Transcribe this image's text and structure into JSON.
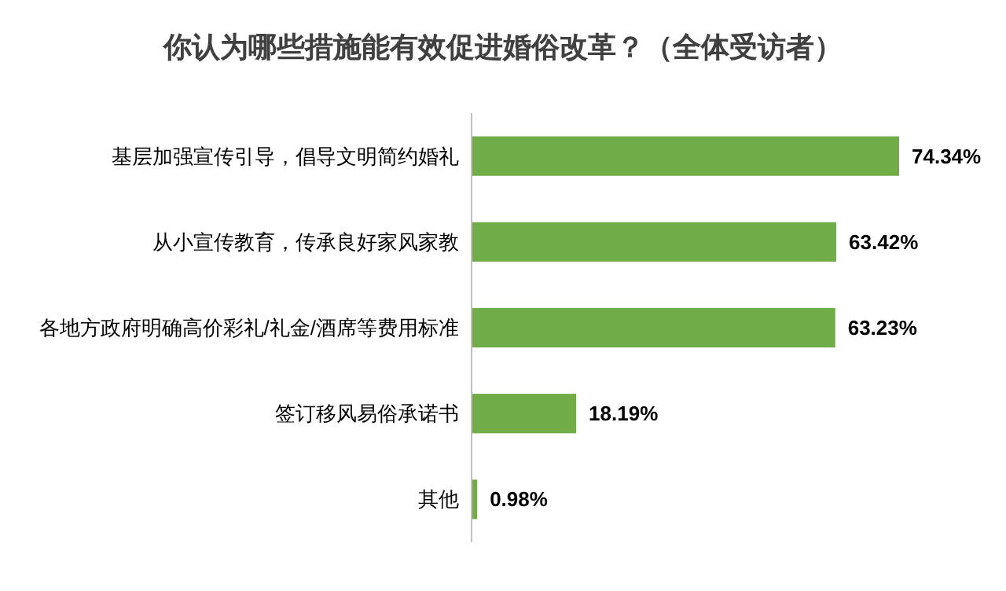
{
  "chart_data": {
    "type": "bar",
    "orientation": "horizontal",
    "title": "你认为哪些措施能有效促进婚俗改革？（全体受访者）",
    "categories": [
      "基层加强宣传引导，倡导文明简约婚礼",
      "从小宣传教育，传承良好家风家教",
      "各地方政府明确高价彩礼/礼金/酒席等费用标准",
      "签订移风易俗承诺书",
      "其他"
    ],
    "values": [
      74.34,
      63.42,
      63.23,
      18.19,
      0.98
    ],
    "value_labels": [
      "74.34%",
      "63.42%",
      "63.23%",
      "18.19%",
      "0.98%"
    ],
    "color": "#70ad47"
  }
}
